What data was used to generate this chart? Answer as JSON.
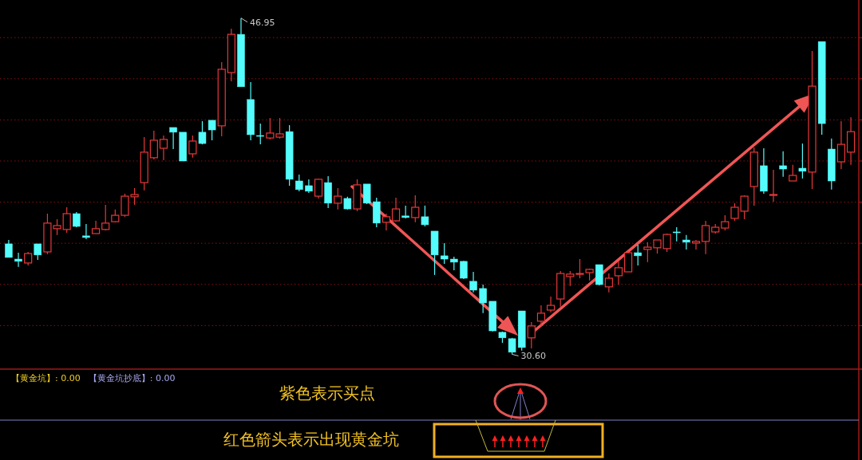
{
  "chart_data": {
    "type": "candlestick",
    "categories": [
      null,
      null,
      null,
      null,
      null,
      null,
      null,
      null,
      null,
      null,
      null,
      null,
      null,
      null,
      null,
      null,
      null,
      null,
      null,
      null,
      null,
      null,
      null,
      null,
      null,
      null,
      null,
      null,
      null,
      null,
      null,
      null,
      null,
      null,
      null,
      null,
      null,
      null,
      null,
      null,
      null,
      null,
      null,
      null,
      null,
      null,
      null,
      null,
      null,
      null,
      null,
      null,
      null,
      null,
      null,
      null,
      null,
      null,
      null,
      null,
      null,
      null,
      null,
      null,
      null,
      null,
      null,
      null,
      null,
      null,
      null,
      null,
      null,
      null,
      null,
      null,
      null,
      null,
      null,
      null,
      null,
      null,
      null,
      null,
      null,
      null,
      null,
      null
    ],
    "ohlc": [
      [
        35.97,
        36.16,
        35.31,
        35.31
      ],
      [
        35.23,
        35.54,
        34.85,
        35.12
      ],
      [
        35.04,
        35.58,
        34.92,
        35.5
      ],
      [
        35.97,
        35.97,
        35.19,
        35.43
      ],
      [
        35.58,
        37.44,
        35.47,
        36.98
      ],
      [
        36.71,
        37.17,
        36.4,
        36.86
      ],
      [
        36.67,
        37.75,
        36.51,
        37.44
      ],
      [
        37.44,
        37.52,
        36.78,
        36.82
      ],
      [
        36.36,
        36.94,
        36.2,
        36.28
      ],
      [
        36.47,
        37.09,
        36.47,
        36.71
      ],
      [
        36.67,
        37.87,
        36.63,
        36.98
      ],
      [
        37.05,
        37.64,
        37.02,
        37.36
      ],
      [
        37.36,
        38.41,
        37.29,
        38.29
      ],
      [
        38.26,
        38.68,
        37.87,
        38.37
      ],
      [
        38.95,
        41.16,
        38.57,
        40.43
      ],
      [
        40.16,
        41.47,
        40.08,
        41.01
      ],
      [
        40.62,
        41.24,
        40.04,
        41.05
      ],
      [
        41.63,
        41.63,
        40.58,
        41.4
      ],
      [
        41.4,
        41.4,
        40.0,
        40.0
      ],
      [
        40.35,
        41.24,
        40.16,
        40.97
      ],
      [
        41.4,
        41.94,
        40.81,
        40.85
      ],
      [
        41.98,
        41.98,
        41.01,
        41.51
      ],
      [
        41.71,
        44.81,
        41.2,
        44.46
      ],
      [
        44.3,
        46.43,
        43.88,
        46.16
      ],
      [
        46.16,
        46.95,
        43.61,
        43.61
      ],
      [
        42.99,
        43.84,
        41.01,
        41.28
      ],
      [
        41.24,
        41.82,
        40.81,
        41.2
      ],
      [
        41.12,
        42.09,
        41.05,
        41.36
      ],
      [
        41.16,
        42.09,
        41.09,
        41.32
      ],
      [
        41.43,
        41.74,
        38.8,
        39.11
      ],
      [
        39.03,
        39.34,
        38.53,
        38.61
      ],
      [
        38.8,
        39.11,
        38.45,
        38.53
      ],
      [
        38.29,
        39.15,
        38.18,
        39.11
      ],
      [
        38.95,
        39.26,
        37.71,
        37.95
      ],
      [
        37.95,
        38.68,
        37.64,
        38.29
      ],
      [
        38.18,
        38.26,
        37.64,
        37.67
      ],
      [
        37.67,
        39.11,
        37.56,
        38.84
      ],
      [
        38.88,
        38.88,
        37.91,
        37.95
      ],
      [
        38.02,
        38.22,
        36.78,
        36.98
      ],
      [
        37.02,
        37.44,
        36.63,
        37.29
      ],
      [
        37.09,
        38.22,
        37.05,
        37.67
      ],
      [
        37.33,
        37.83,
        37.21,
        37.25
      ],
      [
        37.25,
        38.33,
        37.02,
        37.75
      ],
      [
        37.29,
        37.83,
        36.82,
        36.9
      ],
      [
        36.59,
        36.59,
        34.46,
        35.43
      ],
      [
        35.39,
        36.01,
        35.0,
        35.23
      ],
      [
        35.23,
        35.35,
        34.69,
        35.08
      ],
      [
        35.12,
        35.15,
        34.26,
        34.3
      ],
      [
        34.15,
        34.61,
        33.61,
        33.72
      ],
      [
        33.8,
        33.99,
        32.6,
        33.1
      ],
      [
        33.18,
        33.18,
        31.71,
        31.74
      ],
      [
        31.67,
        31.71,
        31.16,
        31.4
      ],
      [
        31.36,
        31.4,
        30.6,
        30.7
      ],
      [
        32.71,
        32.71,
        30.78,
        30.93
      ],
      [
        31.4,
        32.17,
        30.89,
        31.98
      ],
      [
        32.21,
        32.98,
        31.94,
        32.6
      ],
      [
        32.75,
        33.41,
        32.64,
        32.98
      ],
      [
        33.29,
        34.65,
        32.91,
        34.53
      ],
      [
        34.38,
        34.65,
        33.92,
        34.5
      ],
      [
        34.5,
        35.23,
        34.3,
        34.53
      ],
      [
        34.57,
        34.77,
        34.19,
        34.73
      ],
      [
        34.96,
        34.96,
        33.95,
        33.99
      ],
      [
        33.88,
        34.53,
        33.61,
        34.3
      ],
      [
        34.42,
        35.15,
        33.99,
        34.81
      ],
      [
        34.61,
        35.62,
        34.61,
        35.54
      ],
      [
        35.54,
        35.93,
        34.92,
        35.39
      ],
      [
        35.7,
        36.05,
        35.08,
        35.81
      ],
      [
        35.78,
        36.16,
        35.5,
        36.16
      ],
      [
        35.74,
        36.47,
        35.58,
        36.43
      ],
      [
        36.55,
        36.78,
        36.09,
        36.51
      ],
      [
        36.16,
        36.4,
        35.7,
        36.05
      ],
      [
        36.01,
        36.16,
        35.7,
        36.09
      ],
      [
        36.09,
        37.09,
        35.47,
        36.86
      ],
      [
        36.55,
        36.94,
        36.47,
        36.78
      ],
      [
        36.74,
        37.36,
        36.63,
        37.05
      ],
      [
        37.21,
        37.95,
        37.09,
        37.75
      ],
      [
        37.56,
        38.33,
        37.17,
        38.29
      ],
      [
        38.76,
        40.66,
        37.83,
        40.43
      ],
      [
        39.77,
        40.62,
        38.41,
        38.53
      ],
      [
        38.33,
        39.57,
        38.02,
        38.37
      ],
      [
        39.77,
        40.47,
        39.23,
        39.61
      ],
      [
        39.03,
        39.81,
        39.03,
        39.3
      ],
      [
        39.65,
        40.85,
        39.15,
        39.5
      ],
      [
        39.46,
        45.35,
        38.64,
        43.64
      ],
      [
        45.81,
        45.81,
        41.28,
        41.82
      ],
      [
        40.58,
        41.09,
        38.61,
        39.03
      ],
      [
        39.96,
        41.94,
        39.61,
        40.81
      ],
      [
        40.43,
        42.13,
        39.81,
        41.43
      ]
    ],
    "ylim": [
      29.88,
      47.83
    ],
    "yticks": [
      {
        "value": 32,
        "label": null
      },
      {
        "value": 34,
        "label": null
      },
      {
        "value": 36,
        "label": null
      },
      {
        "value": 38,
        "label": null
      },
      {
        "value": 40,
        "label": null
      },
      {
        "value": 42,
        "label": null
      },
      {
        "value": 44,
        "label": null
      },
      {
        "value": 46,
        "label": null
      }
    ],
    "grid": "y",
    "annotations": [
      "46.95",
      "30.60",
      "【黄金坑】: 0.00",
      "【黄金坑抄底】: 0.00",
      "紫色表示买点",
      "红色箭头表示出现黄金坑"
    ]
  }
}
